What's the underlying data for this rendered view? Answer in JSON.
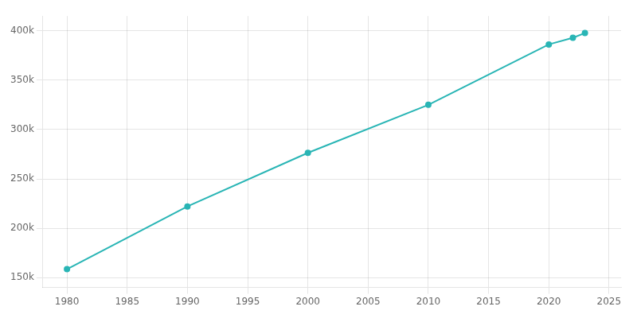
{
  "chart_data": {
    "type": "line",
    "x": [
      1980,
      1990,
      2000,
      2010,
      2020,
      2022,
      2023
    ],
    "values": [
      158588,
      222103,
      276393,
      325078,
      386261,
      393048,
      397770
    ],
    "color": "#29b5b5",
    "marker": "circle",
    "xlim": [
      1978,
      2026
    ],
    "ylim": [
      140000,
      415000
    ],
    "xticks": [
      1980,
      1985,
      1990,
      1995,
      2000,
      2005,
      2010,
      2015,
      2020,
      2025
    ],
    "yticks": [
      {
        "value": 150000,
        "label": "150k"
      },
      {
        "value": 200000,
        "label": "200k"
      },
      {
        "value": 250000,
        "label": "250k"
      },
      {
        "value": 300000,
        "label": "300k"
      },
      {
        "value": 350000,
        "label": "350k"
      },
      {
        "value": 400000,
        "label": "400k"
      }
    ],
    "grid": true
  }
}
